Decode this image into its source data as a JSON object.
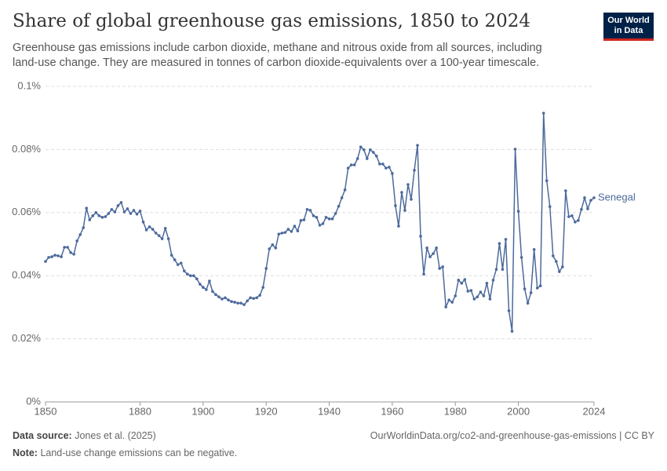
{
  "chart_data": {
    "type": "line",
    "title": "Share of global greenhouse gas emissions, 1850 to 2024",
    "subtitle": "Greenhouse gas emissions include carbon dioxide, methane and nitrous oxide from all sources, including land-use change. They are measured in tonnes of carbon dioxide-equivalents over a 100-year timescale.",
    "logo": [
      "Our World",
      "in Data"
    ],
    "source_label": "Data source:",
    "source": "Jones et al. (2025)",
    "url": "OurWorldinData.org/co2-and-greenhouse-gas-emissions | CC BY",
    "note_label": "Note:",
    "note": "Land-use change emissions can be negative.",
    "x": [
      1850,
      1851,
      1852,
      1853,
      1854,
      1855,
      1856,
      1857,
      1858,
      1859,
      1860,
      1861,
      1862,
      1863,
      1864,
      1865,
      1866,
      1867,
      1868,
      1869,
      1870,
      1871,
      1872,
      1873,
      1874,
      1875,
      1876,
      1877,
      1878,
      1879,
      1880,
      1881,
      1882,
      1883,
      1884,
      1885,
      1886,
      1887,
      1888,
      1889,
      1890,
      1891,
      1892,
      1893,
      1894,
      1895,
      1896,
      1897,
      1898,
      1899,
      1900,
      1901,
      1902,
      1903,
      1904,
      1905,
      1906,
      1907,
      1908,
      1909,
      1910,
      1911,
      1912,
      1913,
      1914,
      1915,
      1916,
      1917,
      1918,
      1919,
      1920,
      1921,
      1922,
      1923,
      1924,
      1925,
      1926,
      1927,
      1928,
      1929,
      1930,
      1931,
      1932,
      1933,
      1934,
      1935,
      1936,
      1937,
      1938,
      1939,
      1940,
      1941,
      1942,
      1943,
      1944,
      1945,
      1946,
      1947,
      1948,
      1949,
      1950,
      1951,
      1952,
      1953,
      1954,
      1955,
      1956,
      1957,
      1958,
      1959,
      1960,
      1961,
      1962,
      1963,
      1964,
      1965,
      1966,
      1967,
      1968,
      1969,
      1970,
      1971,
      1972,
      1973,
      1974,
      1975,
      1976,
      1977,
      1978,
      1979,
      1980,
      1981,
      1982,
      1983,
      1984,
      1985,
      1986,
      1987,
      1988,
      1989,
      1990,
      1991,
      1992,
      1993,
      1994,
      1995,
      1996,
      1997,
      1998,
      1999,
      2000,
      2001,
      2002,
      2003,
      2004,
      2005,
      2006,
      2007,
      2008,
      2009,
      2010,
      2011,
      2012,
      2013,
      2014,
      2015,
      2016,
      2017,
      2018,
      2019,
      2020,
      2021,
      2022,
      2023,
      2024
    ],
    "series": [
      {
        "name": "Senegal",
        "color": "#4c6a9c",
        "values": [
          0.0445,
          0.0458,
          0.046,
          0.0465,
          0.0463,
          0.046,
          0.049,
          0.049,
          0.0473,
          0.0468,
          0.051,
          0.053,
          0.0552,
          0.0614,
          0.0577,
          0.059,
          0.06,
          0.059,
          0.0585,
          0.0587,
          0.0597,
          0.061,
          0.0602,
          0.0622,
          0.0632,
          0.0602,
          0.0612,
          0.0597,
          0.0607,
          0.0595,
          0.0605,
          0.057,
          0.0545,
          0.0555,
          0.0547,
          0.0535,
          0.0527,
          0.0517,
          0.055,
          0.0517,
          0.0465,
          0.045,
          0.0435,
          0.044,
          0.0415,
          0.0405,
          0.04,
          0.04,
          0.039,
          0.0373,
          0.0363,
          0.0356,
          0.0383,
          0.035,
          0.034,
          0.0333,
          0.0326,
          0.033,
          0.0323,
          0.0318,
          0.0316,
          0.0313,
          0.0313,
          0.0308,
          0.032,
          0.033,
          0.0328,
          0.033,
          0.0338,
          0.0363,
          0.0423,
          0.0485,
          0.0498,
          0.0488,
          0.0532,
          0.0535,
          0.0537,
          0.0547,
          0.054,
          0.0557,
          0.0542,
          0.0575,
          0.0577,
          0.061,
          0.0607,
          0.059,
          0.0585,
          0.056,
          0.0565,
          0.0585,
          0.058,
          0.058,
          0.0597,
          0.062,
          0.0647,
          0.0672,
          0.0741,
          0.0751,
          0.0751,
          0.0771,
          0.0808,
          0.0799,
          0.0771,
          0.0799,
          0.0791,
          0.0779,
          0.0754,
          0.0754,
          0.0741,
          0.0744,
          0.0724,
          0.0622,
          0.0557,
          0.0664,
          0.0607,
          0.0689,
          0.0642,
          0.0734,
          0.0813,
          0.0525,
          0.0405,
          0.0488,
          0.046,
          0.047,
          0.0488,
          0.0423,
          0.0428,
          0.0301,
          0.0323,
          0.0316,
          0.0336,
          0.0386,
          0.0376,
          0.0388,
          0.0351,
          0.0353,
          0.0326,
          0.0333,
          0.0348,
          0.0336,
          0.0376,
          0.0326,
          0.0386,
          0.042,
          0.0502,
          0.042,
          0.0515,
          0.0289,
          0.0224,
          0.0801,
          0.0604,
          0.0458,
          0.0358,
          0.0313,
          0.0346,
          0.0483,
          0.0361,
          0.0368,
          0.0915,
          0.0701,
          0.0619,
          0.0463,
          0.0445,
          0.0413,
          0.0428,
          0.0669,
          0.0587,
          0.059,
          0.057,
          0.0575,
          0.061,
          0.0647,
          0.0612,
          0.0639,
          0.0647
        ]
      }
    ],
    "xlim": [
      1850,
      2024
    ],
    "xticks": [
      1850,
      1880,
      1900,
      1920,
      1940,
      1960,
      1980,
      2000,
      2024
    ],
    "ylim": [
      0,
      0.1
    ],
    "yticks": [
      {
        "value": 0,
        "label": "0%"
      },
      {
        "value": 0.02,
        "label": "0.02%"
      },
      {
        "value": 0.04,
        "label": "0.04%"
      },
      {
        "value": 0.06,
        "label": "0.06%"
      },
      {
        "value": 0.08,
        "label": "0.08%"
      },
      {
        "value": 0.1,
        "label": "0.1%"
      }
    ],
    "grid": true
  }
}
